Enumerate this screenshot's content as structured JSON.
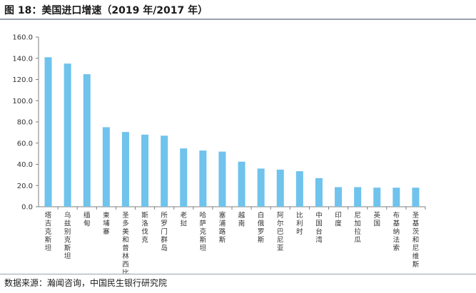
{
  "header": {
    "title": "图 18：美国进口增速（2019 年/2017 年）"
  },
  "footer": {
    "source": "数据来源：瀚闻咨询，中国民生银行研究院"
  },
  "colors": {
    "bar": "#6fc3ec",
    "axis": "#7f7f7f",
    "rule": "#9aa3ad"
  },
  "chart_data": {
    "type": "bar",
    "title": "",
    "xlabel": "",
    "ylabel": "",
    "ylim": [
      0,
      160
    ],
    "yticks": [
      "0.0",
      "20.0",
      "40.0",
      "60.0",
      "80.0",
      "100.0",
      "120.0",
      "140.0",
      "160.0"
    ],
    "grid": false,
    "legend": "none",
    "categories": [
      "塔吉克斯坦",
      "乌兹别克斯坦",
      "缅甸",
      "柬埔寨",
      "圣多美和普林西比",
      "斯洛伐克",
      "所罗门群岛",
      "老挝",
      "哈萨克斯坦",
      "塞浦路斯",
      "越南",
      "白俄罗斯",
      "阿尔巴尼亚",
      "比利时",
      "中国台湾",
      "印度",
      "尼加拉瓜",
      "英国",
      "布基纳法索",
      "圣基茨和尼维斯"
    ],
    "values": [
      141,
      135,
      125,
      75,
      70.5,
      68,
      67,
      55,
      53,
      52,
      42.5,
      36,
      35,
      33.5,
      27,
      18.5,
      18.5,
      18,
      18,
      18
    ]
  }
}
